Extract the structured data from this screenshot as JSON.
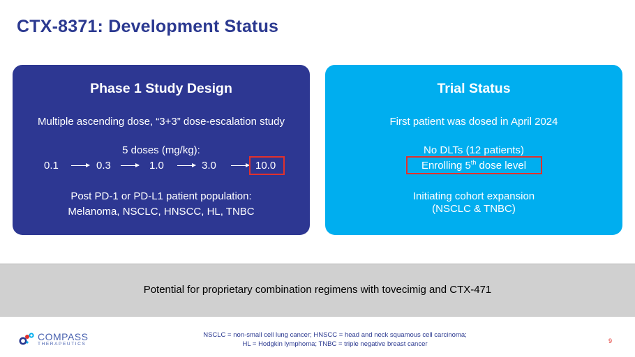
{
  "title": "CTX-8371: Development Status",
  "left_card": {
    "title": "Phase 1 Study Design",
    "line1": "Multiple ascending dose, “3+3” dose-escalation study",
    "doses_label": "5 doses (mg/kg):",
    "doses": [
      "0.1",
      "0.3",
      "1.0",
      "3.0",
      "10.0"
    ],
    "population_label": "Post PD-1 or PD-L1 patient population:",
    "population": "Melanoma, NSCLC, HNSCC, HL, TNBC"
  },
  "right_card": {
    "title": "Trial Status",
    "line1": "First patient was dosed in April 2024",
    "line2": "No DLTs (12 patients)",
    "enrolling_pre": "Enrolling 5",
    "enrolling_sup": "th",
    "enrolling_post": " dose level",
    "line4": "Initiating cohort expansion",
    "line5": "(NSCLC & TNBC)"
  },
  "banner": {
    "text": "Potential for proprietary combination regimens with tovecimig and CTX-471"
  },
  "logo": {
    "name": "COMPASS",
    "sub": "THERAPEUTICS"
  },
  "footnote": {
    "line1_a": "NSCLC = non-small cell lung cancer; HNSCC = head and neck squamous cell carcinoma;",
    "line2": "HL = Hodgkin lymphoma; TNBC = triple negative breast cancer"
  },
  "page_number": "9",
  "colors": {
    "title": "#2b3990",
    "left_card": "#2d3792",
    "right_card": "#00aeef",
    "highlight": "#e1312c",
    "banner": "#d0d0d0"
  }
}
